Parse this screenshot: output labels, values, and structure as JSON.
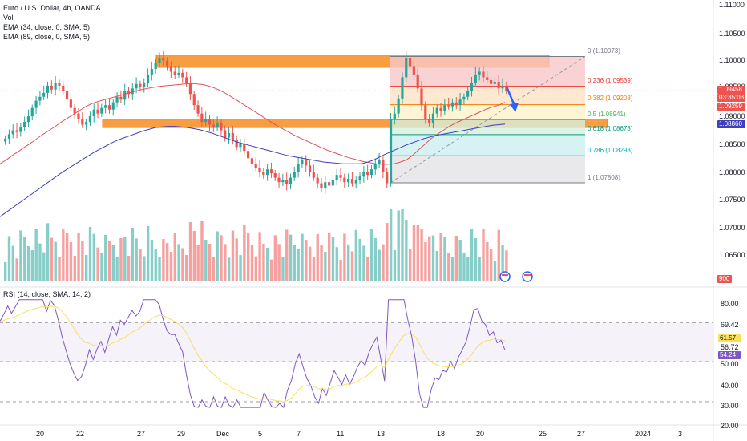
{
  "header": {
    "symbol": "Euro / U.S. Dollar, 4h, OANDA",
    "vol": "Vol",
    "ema1": "EMA (34, close, 0, SMA, 5)",
    "ema2": "EMA (89, close, 0, SMA, 5)"
  },
  "rsi_panel": {
    "title": "RSI (14, close, SMA, 14, 2)"
  },
  "colors": {
    "bull": "#26a69a",
    "bear": "#ef5350",
    "ema34": "#e0535a",
    "ema89": "#3f3fbf",
    "zone": "#f57c00",
    "rsi": "#7e57c2",
    "rsi_ma": "#f6e05e"
  },
  "price_scale": {
    "ticks": [
      "1.11000",
      "1.10500",
      "1.10000",
      "1.09500",
      "1.09000",
      "1.08500",
      "1.08000",
      "1.07500",
      "1.07000",
      "1.06500"
    ],
    "last_price": "1.09458",
    "countdown": "03:35:03",
    "ema34_value": "1.09259",
    "ema89_value": "1.08860",
    "volume_value": "900"
  },
  "rsi_scale": {
    "ticks": [
      "80.00",
      "69.42",
      "50.00",
      "40.00",
      "30.00",
      "20.00"
    ],
    "rsi_ma_value": "61.57",
    "rsi_value": "54.24",
    "level_5672": "56.72"
  },
  "time_axis": {
    "labels": [
      "20",
      "22",
      "27",
      "29",
      "Dec",
      "5",
      "7",
      "11",
      "13",
      "18",
      "20",
      "25",
      "27",
      "2024",
      "3"
    ]
  },
  "fibonacci": [
    {
      "label": "0 (1.10073)"
    },
    {
      "label": "0.236 (1.09539)"
    },
    {
      "label": "0.382 (1.09208)"
    },
    {
      "label": "0.5 (1.08941)"
    },
    {
      "label": "0.618 (1.08673)"
    },
    {
      "label": "0.786 (1.08293)"
    },
    {
      "label": "1 (1.07808)"
    }
  ],
  "chart_data": {
    "type": "candlestick",
    "title": "Euro / U.S. Dollar, 4h, OANDA",
    "ylim": [
      1.065,
      1.11
    ],
    "close": [
      1.086,
      1.0868,
      1.0875,
      1.0872,
      1.088,
      1.089,
      1.09,
      1.0915,
      1.0928,
      1.0935,
      1.0942,
      1.0955,
      1.0948,
      1.096,
      1.0955,
      1.0945,
      1.093,
      1.0915,
      1.0905,
      1.0895,
      1.0885,
      1.089,
      1.09,
      1.0912,
      1.0905,
      1.0915,
      1.092,
      1.0912,
      1.0925,
      1.0935,
      1.093,
      1.0945,
      1.094,
      1.095,
      1.0958,
      1.0952,
      1.096,
      1.0975,
      1.0985,
      1.0995,
      1.1005,
      1.1,
      1.099,
      1.098,
      1.0975,
      1.0978,
      1.097,
      1.096,
      1.094,
      1.092,
      1.0905,
      1.089,
      1.0895,
      1.0885,
      1.088,
      1.0888,
      1.0875,
      1.0862,
      1.087,
      1.0858,
      1.0845,
      1.085,
      1.0838,
      1.0825,
      1.0815,
      1.0808,
      1.08,
      1.0795,
      1.0805,
      1.0798,
      1.079,
      1.0782,
      1.0786,
      1.0778,
      1.079,
      1.08,
      1.0815,
      1.0822,
      1.0812,
      1.08,
      1.079,
      1.078,
      1.0772,
      1.0782,
      1.0776,
      1.0786,
      1.0795,
      1.079,
      1.0782,
      1.0788,
      1.078,
      1.0786,
      1.0792,
      1.08,
      1.0795,
      1.0805,
      1.0815,
      1.0822,
      1.08,
      1.078,
      1.0895,
      1.0905,
      1.0932,
      1.097,
      1.1005,
      1.099,
      1.0975,
      1.095,
      1.092,
      1.0895,
      1.0888,
      1.0905,
      1.0915,
      1.091,
      1.092,
      1.0918,
      1.0925,
      1.092,
      1.093,
      1.0935,
      1.0945,
      1.096,
      1.0975,
      1.098,
      1.097,
      1.0965,
      1.0958,
      1.0962,
      1.095,
      1.0955,
      1.0946
    ],
    "ema34": [
      1.0815,
      1.0822,
      1.083,
      1.0837,
      1.0845,
      1.0852,
      1.086,
      1.0868,
      1.0875,
      1.0882,
      1.089,
      1.0897,
      1.0904,
      1.0911,
      1.0918,
      1.0923,
      1.0927,
      1.093,
      1.0933,
      1.0936,
      1.0939,
      1.0942,
      1.0945,
      1.0948,
      1.095,
      1.0952,
      1.0954,
      1.0955,
      1.0956,
      1.0957,
      1.0958,
      1.0959,
      1.0958,
      1.0957,
      1.0954,
      1.095,
      1.0945,
      1.0939,
      1.0932,
      1.0925,
      1.0918,
      1.0911,
      1.0904,
      1.0897,
      1.089,
      1.0883,
      1.0877,
      1.0871,
      1.0865,
      1.086,
      1.0855,
      1.085,
      1.0845,
      1.084,
      1.0836,
      1.0832,
      1.0828,
      1.0825,
      1.0822,
      1.0819,
      1.0817,
      1.0815,
      1.0814,
      1.0814,
      1.0815,
      1.0818,
      1.0822,
      1.083,
      1.084,
      1.085,
      1.086,
      1.0868,
      1.0875,
      1.0882,
      1.0888,
      1.0893,
      1.0898,
      1.0903,
      1.0908,
      1.0913,
      1.0917,
      1.092,
      1.0925
    ],
    "ema89": [
      1.072,
      1.0728,
      1.0736,
      1.0744,
      1.0752,
      1.076,
      1.0768,
      1.0776,
      1.0784,
      1.0792,
      1.08,
      1.0807,
      1.0814,
      1.0821,
      1.0828,
      1.0835,
      1.0841,
      1.0847,
      1.0853,
      1.0858,
      1.0862,
      1.0866,
      1.087,
      1.0874,
      1.0877,
      1.088,
      1.0881,
      1.0882,
      1.0882,
      1.0881,
      1.088,
      1.0878,
      1.0876,
      1.0873,
      1.087,
      1.0866,
      1.0862,
      1.0858,
      1.0854,
      1.0851,
      1.0848,
      1.0845,
      1.0842,
      1.0839,
      1.0836,
      1.0833,
      1.083,
      1.0828,
      1.0826,
      1.0824,
      1.0822,
      1.082,
      1.0818,
      1.0817,
      1.0816,
      1.0815,
      1.0815,
      1.0815,
      1.0815,
      1.0818,
      1.0822,
      1.0828,
      1.0833,
      1.0838,
      1.0843,
      1.0848,
      1.0852,
      1.0856,
      1.086,
      1.0863,
      1.0866,
      1.0868,
      1.087,
      1.0872,
      1.0874,
      1.0876,
      1.0878,
      1.088,
      1.0882,
      1.0884,
      1.0885,
      1.0886
    ]
  }
}
